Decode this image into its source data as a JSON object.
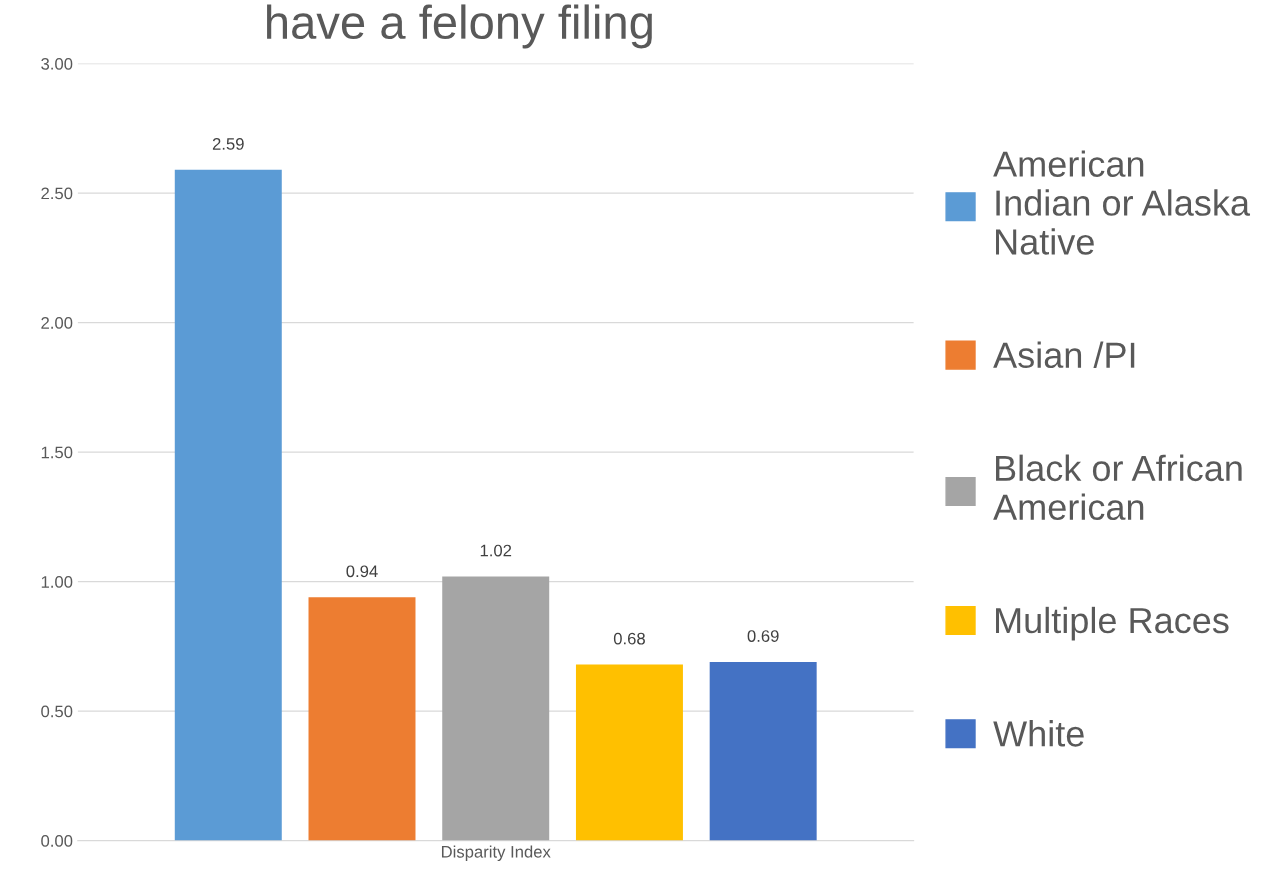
{
  "chart_data": {
    "type": "bar",
    "title": "have a felony filing",
    "xlabel": null,
    "categories": [
      "Disparity Index"
    ],
    "series": [
      {
        "name": "American\nIndian or Alaska\nNative",
        "color": "#5b9bd5",
        "values": [
          2.59
        ]
      },
      {
        "name": "Asian /PI",
        "color": "#ed7d31",
        "values": [
          0.94
        ]
      },
      {
        "name": "Black or African\nAmerican",
        "color": "#a5a5a5",
        "values": [
          1.02
        ]
      },
      {
        "name": "Multiple Races",
        "color": "#ffc000",
        "values": [
          0.68
        ]
      },
      {
        "name": "White",
        "color": "#4472c4",
        "values": [
          0.69
        ]
      }
    ],
    "ylim": [
      0,
      3
    ],
    "yticks": [
      {
        "value": 0,
        "label": "0.00"
      },
      {
        "value": 0.5,
        "label": "0.50"
      },
      {
        "value": 1,
        "label": "1.00"
      },
      {
        "value": 1.5,
        "label": "1.50"
      },
      {
        "value": 2,
        "label": "2.00"
      },
      {
        "value": 2.5,
        "label": "2.50"
      },
      {
        "value": 3,
        "label": "3.00"
      }
    ],
    "grid": "y",
    "legend": "right",
    "data_labels": true
  }
}
